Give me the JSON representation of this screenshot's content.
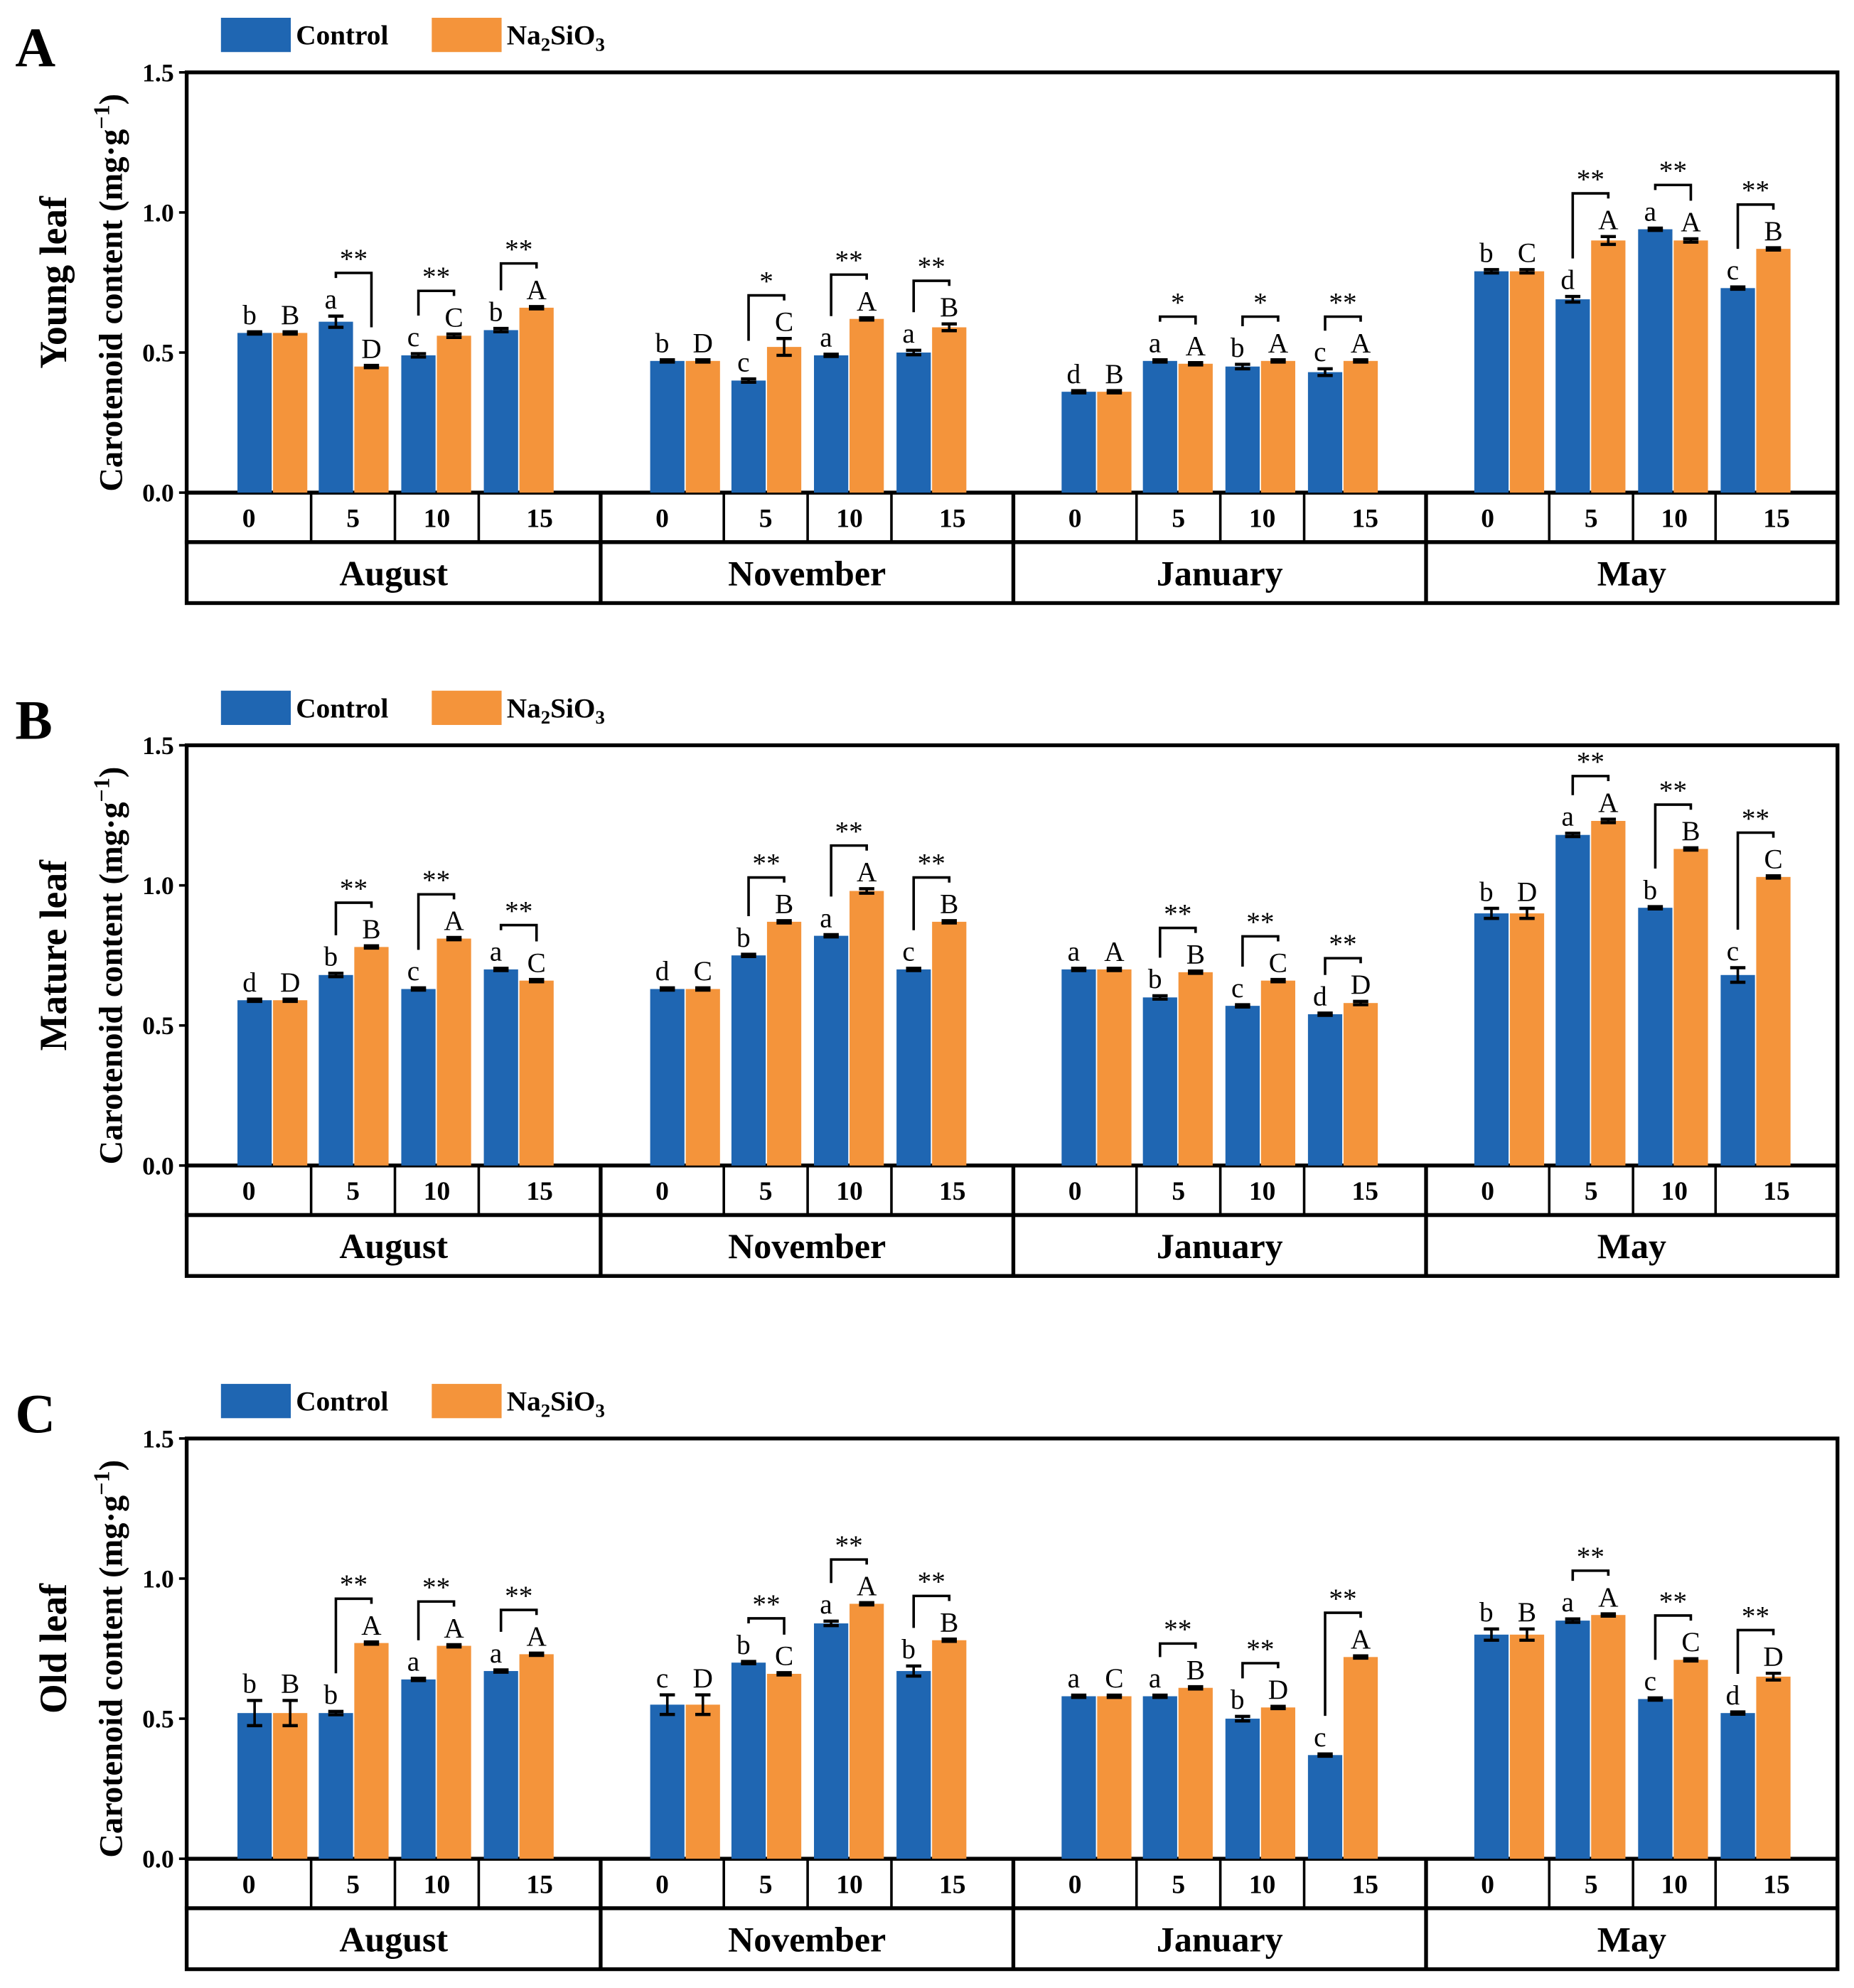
{
  "legend": [
    {
      "label": "Control",
      "color": "#1F66B2"
    },
    {
      "label": "Na2SiO3",
      "label_parts": [
        "Na",
        "2",
        "SiO",
        "3"
      ],
      "color": "#F4943B"
    }
  ],
  "chart_data": [
    {
      "type": "bar",
      "panel": "A",
      "ylabel_prefix": "Young leaf",
      "ylabel": "Carotenoid content (mg·g",
      "ylabel_unit_sup": "−1",
      "ylabel_close": ")",
      "ylim": [
        0,
        1.5
      ],
      "yticks": [
        0.0,
        0.5,
        1.0,
        1.5
      ],
      "ytick_labels": [
        "0.0",
        "0.5",
        "1.0",
        "1.5"
      ],
      "xlabels_treatment": [
        "0",
        "5",
        "10",
        "15"
      ],
      "months": [
        "August",
        "November",
        "January",
        "May"
      ],
      "series": [
        {
          "name": "Control",
          "values": [
            0.57,
            0.61,
            0.49,
            0.58,
            0.47,
            0.4,
            0.49,
            0.5,
            0.36,
            0.47,
            0.45,
            0.43,
            0.79,
            0.69,
            0.94,
            0.73
          ],
          "errors": [
            0.004,
            0.02,
            0.006,
            0.006,
            0.004,
            0.006,
            0.004,
            0.008,
            0.004,
            0.004,
            0.008,
            0.012,
            0.006,
            0.01,
            0.004,
            0.004
          ],
          "letters": [
            "b",
            "a",
            "c",
            "b",
            "b",
            "c",
            "a",
            "a",
            "d",
            "a",
            "b",
            "c",
            "b",
            "d",
            "a",
            "c"
          ]
        },
        {
          "name": "Na2SiO3",
          "values": [
            0.57,
            0.45,
            0.56,
            0.66,
            0.47,
            0.52,
            0.62,
            0.59,
            0.36,
            0.46,
            0.47,
            0.47,
            0.79,
            0.9,
            0.9,
            0.87
          ],
          "errors": [
            0.004,
            0.004,
            0.006,
            0.004,
            0.004,
            0.03,
            0.004,
            0.012,
            0.004,
            0.004,
            0.004,
            0.004,
            0.006,
            0.014,
            0.006,
            0.004
          ],
          "letters": [
            "B",
            "D",
            "C",
            "A",
            "D",
            "C",
            "A",
            "B",
            "B",
            "A",
            "A",
            "A",
            "C",
            "A",
            "A",
            "B"
          ]
        }
      ],
      "significance": [
        "",
        "**",
        "**",
        "**",
        "",
        "*",
        "**",
        "**",
        "",
        "*",
        "*",
        "**",
        "",
        "**",
        "**",
        "**"
      ]
    },
    {
      "type": "bar",
      "panel": "B",
      "ylabel_prefix": "Mature leaf",
      "ylabel": "Carotenoid content (mg·g",
      "ylabel_unit_sup": "−1",
      "ylabel_close": ")",
      "ylim": [
        0,
        1.5
      ],
      "yticks": [
        0.0,
        0.5,
        1.0,
        1.5
      ],
      "ytick_labels": [
        "0.0",
        "0.5",
        "1.0",
        "1.5"
      ],
      "xlabels_treatment": [
        "0",
        "5",
        "10",
        "15"
      ],
      "months": [
        "August",
        "November",
        "January",
        "May"
      ],
      "series": [
        {
          "name": "Control",
          "values": [
            0.59,
            0.68,
            0.63,
            0.7,
            0.63,
            0.75,
            0.82,
            0.7,
            0.7,
            0.6,
            0.57,
            0.54,
            0.9,
            1.18,
            0.92,
            0.68
          ],
          "errors": [
            0.004,
            0.006,
            0.004,
            0.004,
            0.004,
            0.004,
            0.004,
            0.004,
            0.004,
            0.006,
            0.004,
            0.004,
            0.018,
            0.006,
            0.004,
            0.026
          ],
          "letters": [
            "d",
            "b",
            "c",
            "a",
            "d",
            "b",
            "a",
            "c",
            "a",
            "b",
            "c",
            "d",
            "b",
            "a",
            "b",
            "c"
          ]
        },
        {
          "name": "Na2SiO3",
          "values": [
            0.59,
            0.78,
            0.81,
            0.66,
            0.63,
            0.87,
            0.98,
            0.87,
            0.7,
            0.69,
            0.66,
            0.58,
            0.9,
            1.23,
            1.13,
            1.03
          ],
          "errors": [
            0.004,
            0.004,
            0.004,
            0.004,
            0.004,
            0.004,
            0.008,
            0.004,
            0.004,
            0.004,
            0.004,
            0.006,
            0.018,
            0.006,
            0.004,
            0.004
          ],
          "letters": [
            "D",
            "B",
            "A",
            "C",
            "C",
            "B",
            "A",
            "B",
            "A",
            "B",
            "C",
            "D",
            "D",
            "A",
            "B",
            "C"
          ]
        }
      ],
      "significance": [
        "",
        "**",
        "**",
        "**",
        "",
        "**",
        "**",
        "**",
        "",
        "**",
        "**",
        "**",
        "",
        "**",
        "**",
        "**"
      ]
    },
    {
      "type": "bar",
      "panel": "C",
      "ylabel_prefix": "Old leaf",
      "ylabel": "Carotenoid content (mg·g",
      "ylabel_unit_sup": "−1",
      "ylabel_close": ")",
      "ylim": [
        0,
        1.5
      ],
      "yticks": [
        0.0,
        0.5,
        1.0,
        1.5
      ],
      "ytick_labels": [
        "0.0",
        "0.5",
        "1.0",
        "1.5"
      ],
      "xlabels_treatment": [
        "0",
        "5",
        "10",
        "15"
      ],
      "months": [
        "August",
        "November",
        "January",
        "May"
      ],
      "series": [
        {
          "name": "Control",
          "values": [
            0.52,
            0.52,
            0.64,
            0.67,
            0.55,
            0.7,
            0.84,
            0.67,
            0.58,
            0.58,
            0.5,
            0.37,
            0.8,
            0.85,
            0.57,
            0.52
          ],
          "errors": [
            0.045,
            0.006,
            0.004,
            0.004,
            0.035,
            0.004,
            0.008,
            0.018,
            0.004,
            0.004,
            0.008,
            0.004,
            0.02,
            0.006,
            0.004,
            0.004
          ],
          "letters": [
            "b",
            "b",
            "a",
            "a",
            "c",
            "b",
            "a",
            "b",
            "a",
            "a",
            "b",
            "c",
            "b",
            "a",
            "c",
            "d"
          ]
        },
        {
          "name": "Na2SiO3",
          "values": [
            0.52,
            0.77,
            0.76,
            0.73,
            0.55,
            0.66,
            0.91,
            0.78,
            0.58,
            0.61,
            0.54,
            0.72,
            0.8,
            0.87,
            0.71,
            0.65
          ],
          "errors": [
            0.045,
            0.004,
            0.004,
            0.004,
            0.035,
            0.004,
            0.004,
            0.004,
            0.004,
            0.004,
            0.004,
            0.004,
            0.02,
            0.004,
            0.004,
            0.012
          ],
          "letters": [
            "B",
            "A",
            "A",
            "A",
            "D",
            "C",
            "A",
            "B",
            "C",
            "B",
            "D",
            "A",
            "B",
            "A",
            "C",
            "D"
          ]
        }
      ],
      "significance": [
        "",
        "**",
        "**",
        "**",
        "",
        "**",
        "**",
        "**",
        "",
        "**",
        "**",
        "**",
        "",
        "**",
        "**",
        "**"
      ]
    }
  ]
}
